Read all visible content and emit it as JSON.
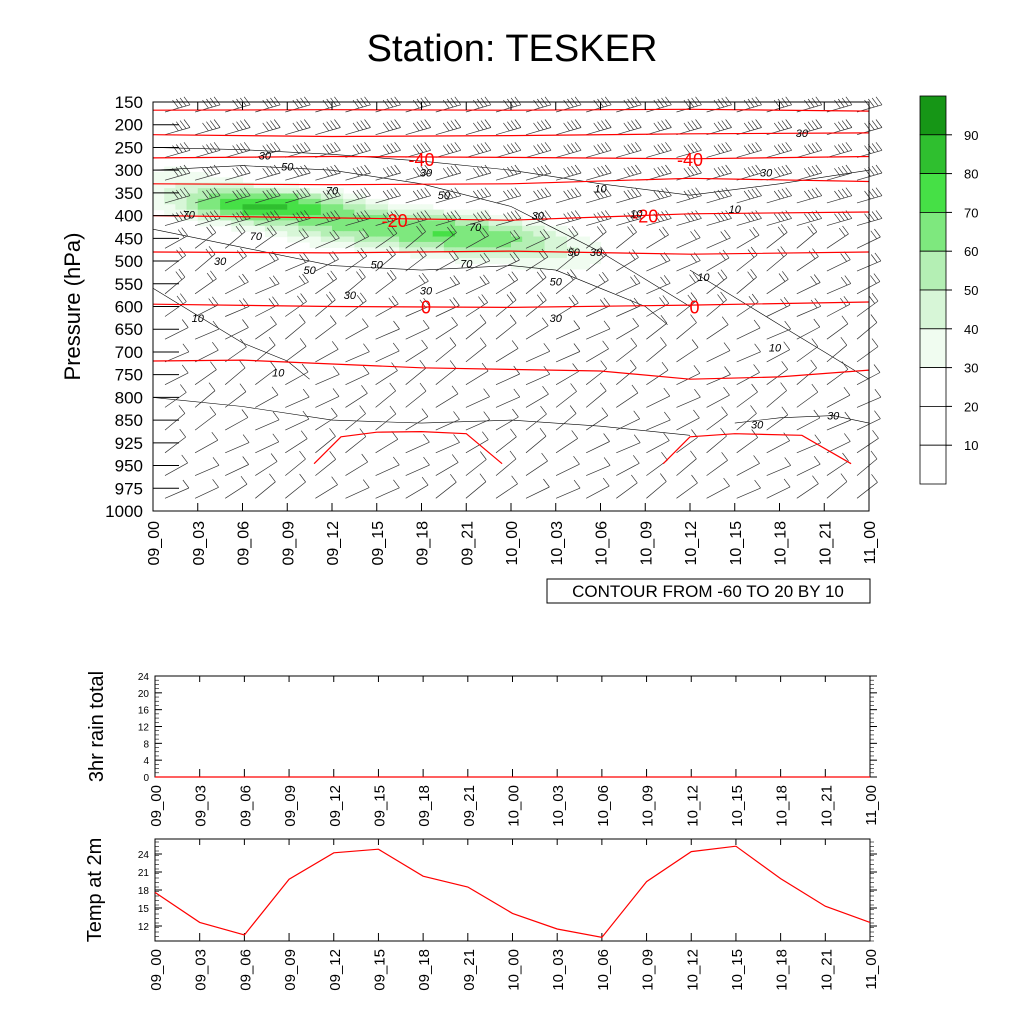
{
  "title": "Station: TESKER",
  "colors": {
    "isotherm": "#ff0000",
    "contour": "#000000",
    "series_line": "#ff0000",
    "fill_scale": [
      "#ffffff",
      "#ffffff",
      "#ffffff",
      "#f0fcf0",
      "#d7f6d7",
      "#b4efb4",
      "#7ee87e",
      "#46e046",
      "#2fbf2f",
      "#169616"
    ]
  },
  "chart_data": [
    {
      "type": "heatmap",
      "ylabel": "Pressure (hPa)",
      "xlabel": "",
      "pressure_levels": [
        150,
        200,
        250,
        300,
        350,
        400,
        450,
        500,
        550,
        600,
        650,
        700,
        750,
        800,
        850,
        925,
        950,
        975,
        1000
      ],
      "time_labels": [
        "09_00",
        "09_03",
        "09_06",
        "09_09",
        "09_12",
        "09_15",
        "09_18",
        "09_21",
        "10_00",
        "10_03",
        "10_06",
        "10_09",
        "10_12",
        "10_15",
        "10_18",
        "10_21",
        "11_00"
      ],
      "fill_colorbar_labels": [
        "10",
        "20",
        "30",
        "40",
        "50",
        "60",
        "70",
        "80",
        "90"
      ],
      "info_label": "CONTOUR FROM -60 TO 20 BY 10",
      "isotherm_labels": [
        {
          "text": "-40",
          "time": 6.0,
          "pressure": 275
        },
        {
          "text": "-40",
          "time": 12.0,
          "pressure": 275
        },
        {
          "text": "-20",
          "time": 5.4,
          "pressure": 410
        },
        {
          "text": "-20",
          "time": 11.0,
          "pressure": 400
        },
        {
          "text": "0",
          "time": 6.1,
          "pressure": 600
        },
        {
          "text": "0",
          "time": 12.1,
          "pressure": 600
        }
      ],
      "contour_labels": [
        {
          "text": "30",
          "time": 2.5,
          "pressure": 268
        },
        {
          "text": "50",
          "time": 3.0,
          "pressure": 292
        },
        {
          "text": "70",
          "time": 4.0,
          "pressure": 345
        },
        {
          "text": "30",
          "time": 6.1,
          "pressure": 305
        },
        {
          "text": "50",
          "time": 6.5,
          "pressure": 355
        },
        {
          "text": "70",
          "time": 0.8,
          "pressure": 398
        },
        {
          "text": "70",
          "time": 2.3,
          "pressure": 445
        },
        {
          "text": "30",
          "time": 1.5,
          "pressure": 500
        },
        {
          "text": "50",
          "time": 3.5,
          "pressure": 520
        },
        {
          "text": "50",
          "time": 5.0,
          "pressure": 508
        },
        {
          "text": "30",
          "time": 4.4,
          "pressure": 575
        },
        {
          "text": "30",
          "time": 6.1,
          "pressure": 565
        },
        {
          "text": "70",
          "time": 7.0,
          "pressure": 505
        },
        {
          "text": "70",
          "time": 7.2,
          "pressure": 425
        },
        {
          "text": "30",
          "time": 8.6,
          "pressure": 400
        },
        {
          "text": "50",
          "time": 9.4,
          "pressure": 480
        },
        {
          "text": "50",
          "time": 9.0,
          "pressure": 545
        },
        {
          "text": "30",
          "time": 9.9,
          "pressure": 480
        },
        {
          "text": "10",
          "time": 10.0,
          "pressure": 340
        },
        {
          "text": "10",
          "time": 10.8,
          "pressure": 395
        },
        {
          "text": "30",
          "time": 9.0,
          "pressure": 625
        },
        {
          "text": "10",
          "time": 1.0,
          "pressure": 625
        },
        {
          "text": "10",
          "time": 2.8,
          "pressure": 745
        },
        {
          "text": "10",
          "time": 12.3,
          "pressure": 535
        },
        {
          "text": "10",
          "time": 13.9,
          "pressure": 690
        },
        {
          "text": "30",
          "time": 14.5,
          "pressure": 218
        },
        {
          "text": "30",
          "time": 13.7,
          "pressure": 305
        },
        {
          "text": "10",
          "time": 13.0,
          "pressure": 385
        },
        {
          "text": "30",
          "time": 13.5,
          "pressure": 865
        },
        {
          "text": "30",
          "time": 15.2,
          "pressure": 840
        }
      ]
    },
    {
      "type": "line",
      "ylabel": "3hr rain total",
      "xlabel": "",
      "x": [
        "09_00",
        "09_03",
        "09_06",
        "09_09",
        "09_12",
        "09_15",
        "09_18",
        "09_21",
        "10_00",
        "10_03",
        "10_06",
        "10_09",
        "10_12",
        "10_15",
        "10_18",
        "10_21",
        "11_00"
      ],
      "yticks": [
        0,
        4,
        8,
        12,
        16,
        20,
        24
      ],
      "ylim": [
        0,
        24
      ],
      "values": [
        0,
        0,
        0,
        0,
        0,
        0,
        0,
        0,
        0,
        0,
        0,
        0,
        0,
        0,
        0,
        0,
        0
      ]
    },
    {
      "type": "line",
      "ylabel": "Temp at 2m",
      "xlabel": "",
      "x": [
        "09_00",
        "09_03",
        "09_06",
        "09_09",
        "09_12",
        "09_15",
        "09_18",
        "09_21",
        "10_00",
        "10_03",
        "10_06",
        "10_09",
        "10_12",
        "10_15",
        "10_18",
        "10_21",
        "11_00"
      ],
      "yticks": [
        12,
        15,
        18,
        21,
        24
      ],
      "ylim": [
        9.5,
        26.5
      ],
      "values": [
        17.6,
        12.6,
        10.5,
        19.8,
        24.2,
        24.8,
        20.3,
        18.5,
        14.1,
        11.5,
        10.1,
        19.4,
        24.4,
        25.3,
        19.9,
        15.3,
        12.6
      ]
    }
  ]
}
